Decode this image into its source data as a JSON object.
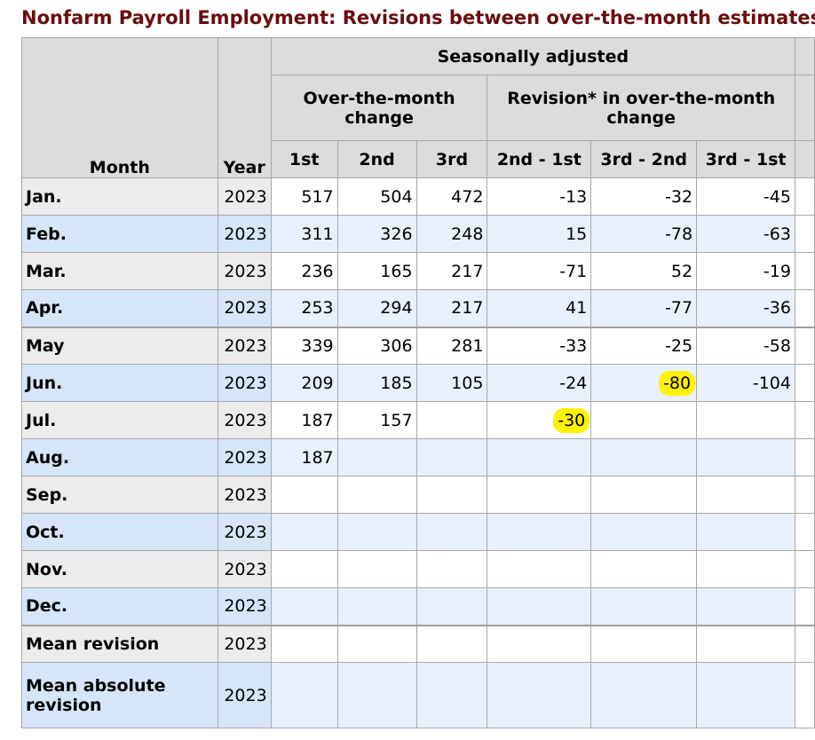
{
  "title": "Nonfarm Payroll Employment: Revisions between over-the-month estimates",
  "header": {
    "month": "Month",
    "year": "Year",
    "seasonally_adjusted": "Seasonally adjusted",
    "otm_change": "Over-the-month change",
    "revision_group": "Revision* in over-the-month change",
    "col_1st": "1st",
    "col_2nd": "2nd",
    "col_3rd": "3rd",
    "col_2nd_1st": "2nd - 1st",
    "col_3rd_2nd": "3rd - 2nd",
    "col_3rd_1st": "3rd - 1st"
  },
  "rows": [
    {
      "month": "Jan.",
      "year": "2023",
      "first": "517",
      "second": "504",
      "third": "472",
      "rev21": "-13",
      "rev32": "-32",
      "rev31": "-45"
    },
    {
      "month": "Feb.",
      "year": "2023",
      "first": "311",
      "second": "326",
      "third": "248",
      "rev21": "15",
      "rev32": "-78",
      "rev31": "-63"
    },
    {
      "month": "Mar.",
      "year": "2023",
      "first": "236",
      "second": "165",
      "third": "217",
      "rev21": "-71",
      "rev32": "52",
      "rev31": "-19"
    },
    {
      "month": "Apr.",
      "year": "2023",
      "first": "253",
      "second": "294",
      "third": "217",
      "rev21": "41",
      "rev32": "-77",
      "rev31": "-36"
    },
    {
      "month": "May",
      "year": "2023",
      "first": "339",
      "second": "306",
      "third": "281",
      "rev21": "-33",
      "rev32": "-25",
      "rev31": "-58"
    },
    {
      "month": "Jun.",
      "year": "2023",
      "first": "209",
      "second": "185",
      "third": "105",
      "rev21": "-24",
      "rev32": "-80",
      "rev31": "-104"
    },
    {
      "month": "Jul.",
      "year": "2023",
      "first": "187",
      "second": "157",
      "third": "",
      "rev21": "-30",
      "rev32": "",
      "rev31": ""
    },
    {
      "month": "Aug.",
      "year": "2023",
      "first": "187",
      "second": "",
      "third": "",
      "rev21": "",
      "rev32": "",
      "rev31": ""
    },
    {
      "month": "Sep.",
      "year": "2023",
      "first": "",
      "second": "",
      "third": "",
      "rev21": "",
      "rev32": "",
      "rev31": ""
    },
    {
      "month": "Oct.",
      "year": "2023",
      "first": "",
      "second": "",
      "third": "",
      "rev21": "",
      "rev32": "",
      "rev31": ""
    },
    {
      "month": "Nov.",
      "year": "2023",
      "first": "",
      "second": "",
      "third": "",
      "rev21": "",
      "rev32": "",
      "rev31": ""
    },
    {
      "month": "Dec.",
      "year": "2023",
      "first": "",
      "second": "",
      "third": "",
      "rev21": "",
      "rev32": "",
      "rev31": ""
    },
    {
      "month": "Mean revision",
      "year": "2023",
      "first": "",
      "second": "",
      "third": "",
      "rev21": "",
      "rev32": "",
      "rev31": ""
    },
    {
      "month": "Mean absolute revision",
      "year": "2023",
      "first": "",
      "second": "",
      "third": "",
      "rev21": "",
      "rev32": "",
      "rev31": ""
    }
  ],
  "highlights": {
    "jun_rev32": "-80",
    "jul_rev21": "-30",
    "color": "#fff200"
  }
}
